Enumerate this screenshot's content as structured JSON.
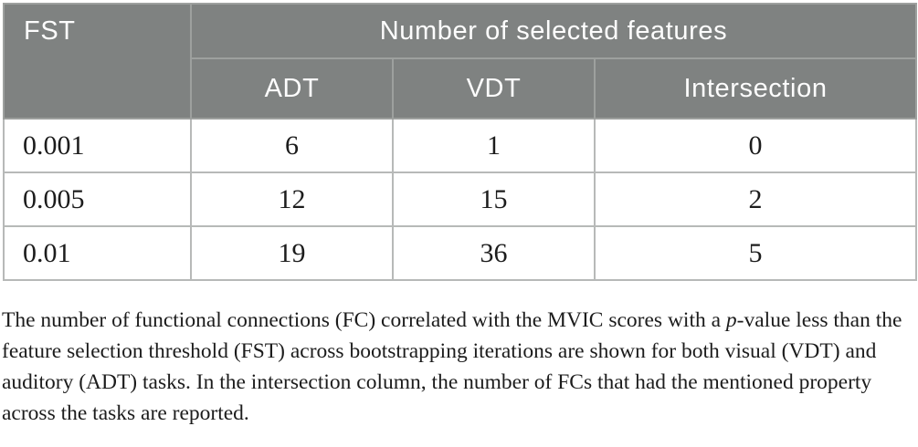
{
  "table": {
    "corner_header": "FST",
    "group_header": "Number of selected features",
    "columns": [
      "ADT",
      "VDT",
      "Intersection"
    ],
    "rows": [
      {
        "fst": "0.001",
        "adt": "6",
        "vdt": "1",
        "intersection": "0"
      },
      {
        "fst": "0.005",
        "adt": "12",
        "vdt": "15",
        "intersection": "2"
      },
      {
        "fst": "0.01",
        "adt": "19",
        "vdt": "36",
        "intersection": "5"
      }
    ]
  },
  "footnote": {
    "part1": "The number of functional connections (FC) correlated with the MVIC scores with a ",
    "italic_term": "p",
    "part2": "-value less than the feature selection threshold (FST) across bootstrapping iterations are shown for both visual (VDT) and auditory (ADT) tasks. In the intersection column, the number of FCs that had the mentioned property across the tasks are reported."
  },
  "colors": {
    "header_background": "#7f8281",
    "header_text": "#fdfdfd",
    "body_text": "#1c1c1c",
    "header_divider": "#9da09e",
    "row_border": "#b7b9b8",
    "outer_border": "#c6c8c7"
  }
}
